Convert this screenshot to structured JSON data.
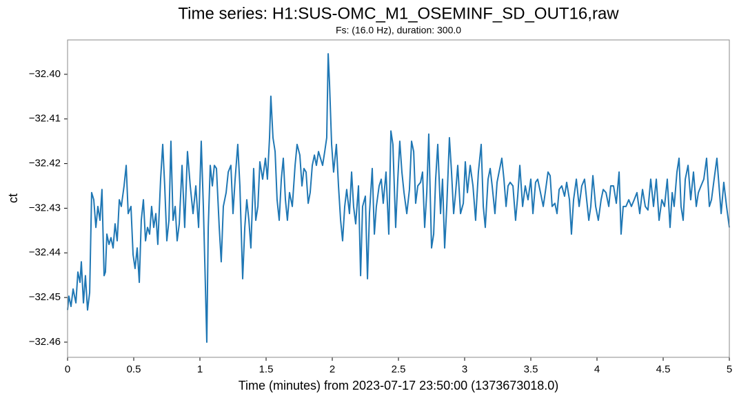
{
  "chart_data": {
    "type": "line",
    "title": "Time series: H1:SUS-OMC_M1_OSEMINF_SD_OUT16,raw",
    "subtitle": "Fs: (16.0 Hz), duration: 300.0",
    "x_label": "Time (minutes) from 2023-07-17 23:50:00 (1373673018.0)",
    "y_label": "ct",
    "color": "#1f77b4",
    "xlim": [
      0,
      5
    ],
    "ylim": [
      -32.4634,
      -32.3923
    ],
    "xticks": [
      0,
      0.5,
      1,
      1.5,
      2,
      2.5,
      3,
      3.5,
      4,
      4.5,
      5
    ],
    "yticks": [
      {
        "value": -32.46,
        "label": "−32.46"
      },
      {
        "value": -32.45,
        "label": "−32.45"
      },
      {
        "value": -32.44,
        "label": "−32.44"
      },
      {
        "value": -32.43,
        "label": "−32.43"
      },
      {
        "value": -32.42,
        "label": "−32.42"
      },
      {
        "value": -32.41,
        "label": "−32.41"
      },
      {
        "value": -32.4,
        "label": "−32.40"
      }
    ],
    "x": [
      0,
      0.01,
      0.026,
      0.042,
      0.063,
      0.078,
      0.094,
      0.104,
      0.12,
      0.135,
      0.151,
      0.167,
      0.182,
      0.198,
      0.214,
      0.229,
      0.245,
      0.26,
      0.276,
      0.286,
      0.297,
      0.313,
      0.328,
      0.344,
      0.359,
      0.375,
      0.391,
      0.406,
      0.427,
      0.443,
      0.458,
      0.479,
      0.495,
      0.51,
      0.526,
      0.542,
      0.557,
      0.573,
      0.589,
      0.604,
      0.62,
      0.635,
      0.651,
      0.667,
      0.682,
      0.703,
      0.719,
      0.734,
      0.75,
      0.766,
      0.781,
      0.797,
      0.813,
      0.828,
      0.844,
      0.865,
      0.885,
      0.906,
      0.927,
      0.948,
      0.969,
      0.99,
      1.01,
      1.026,
      1.042,
      1.052,
      1.063,
      1.078,
      1.094,
      1.109,
      1.125,
      1.146,
      1.161,
      1.177,
      1.198,
      1.214,
      1.234,
      1.25,
      1.266,
      1.286,
      1.302,
      1.323,
      1.339,
      1.354,
      1.37,
      1.385,
      1.406,
      1.422,
      1.438,
      1.453,
      1.474,
      1.495,
      1.51,
      1.526,
      1.536,
      1.552,
      1.568,
      1.583,
      1.599,
      1.615,
      1.63,
      1.646,
      1.661,
      1.677,
      1.698,
      1.719,
      1.734,
      1.755,
      1.771,
      1.786,
      1.802,
      1.818,
      1.833,
      1.849,
      1.865,
      1.88,
      1.896,
      1.911,
      1.927,
      1.943,
      1.958,
      1.969,
      1.979,
      1.995,
      2.01,
      2.031,
      2.047,
      2.063,
      2.078,
      2.094,
      2.109,
      2.13,
      2.146,
      2.161,
      2.177,
      2.198,
      2.214,
      2.229,
      2.25,
      2.266,
      2.281,
      2.302,
      2.318,
      2.333,
      2.354,
      2.37,
      2.385,
      2.406,
      2.427,
      2.443,
      2.458,
      2.479,
      2.495,
      2.51,
      2.526,
      2.542,
      2.563,
      2.583,
      2.599,
      2.615,
      2.63,
      2.646,
      2.667,
      2.682,
      2.698,
      2.714,
      2.729,
      2.75,
      2.766,
      2.781,
      2.797,
      2.818,
      2.833,
      2.849,
      2.865,
      2.885,
      2.901,
      2.917,
      2.932,
      2.948,
      2.969,
      2.99,
      3.005,
      3.021,
      3.042,
      3.063,
      3.083,
      3.104,
      3.125,
      3.141,
      3.156,
      3.177,
      3.193,
      3.208,
      3.229,
      3.245,
      3.26,
      3.281,
      3.297,
      3.313,
      3.328,
      3.344,
      3.365,
      3.385,
      3.401,
      3.417,
      3.438,
      3.458,
      3.479,
      3.5,
      3.516,
      3.536,
      3.552,
      3.573,
      3.594,
      3.609,
      3.63,
      3.646,
      3.661,
      3.682,
      3.698,
      3.714,
      3.734,
      3.755,
      3.771,
      3.792,
      3.807,
      3.823,
      3.844,
      3.865,
      3.885,
      3.906,
      3.922,
      3.938,
      3.953,
      3.969,
      3.99,
      4.01,
      4.031,
      4.047,
      4.068,
      4.089,
      4.104,
      4.125,
      4.146,
      4.167,
      4.182,
      4.198,
      4.219,
      4.24,
      4.26,
      4.281,
      4.302,
      4.323,
      4.344,
      4.365,
      4.385,
      4.406,
      4.427,
      4.448,
      4.469,
      4.49,
      4.51,
      4.531,
      4.552,
      4.568,
      4.583,
      4.604,
      4.62,
      4.635,
      4.651,
      4.667,
      4.688,
      4.708,
      4.729,
      4.75,
      4.766,
      4.786,
      4.807,
      4.828,
      4.849,
      4.865,
      4.885,
      4.906,
      4.922,
      4.938,
      4.958,
      4.979,
      5
    ],
    "values": [
      -32.4528,
      -32.4497,
      -32.452,
      -32.4481,
      -32.4512,
      -32.4443,
      -32.4466,
      -32.442,
      -32.4512,
      -32.4451,
      -32.4528,
      -32.4489,
      -32.4265,
      -32.4281,
      -32.4343,
      -32.4296,
      -32.4327,
      -32.4258,
      -32.4451,
      -32.4443,
      -32.4358,
      -32.4381,
      -32.4366,
      -32.4389,
      -32.4335,
      -32.4373,
      -32.4281,
      -32.4296,
      -32.425,
      -32.4204,
      -32.4312,
      -32.4296,
      -32.4404,
      -32.4435,
      -32.4389,
      -32.4466,
      -32.4327,
      -32.4281,
      -32.4373,
      -32.4343,
      -32.4358,
      -32.4296,
      -32.4343,
      -32.4312,
      -32.4381,
      -32.4235,
      -32.4157,
      -32.425,
      -32.4373,
      -32.4327,
      -32.415,
      -32.4327,
      -32.4296,
      -32.4373,
      -32.4335,
      -32.4204,
      -32.4343,
      -32.4173,
      -32.425,
      -32.4312,
      -32.425,
      -32.4343,
      -32.415,
      -32.4296,
      -32.4481,
      -32.46,
      -32.4343,
      -32.4204,
      -32.425,
      -32.4204,
      -32.4211,
      -32.4343,
      -32.442,
      -32.4296,
      -32.4265,
      -32.4219,
      -32.4204,
      -32.4312,
      -32.4235,
      -32.4157,
      -32.425,
      -32.4458,
      -32.4343,
      -32.4281,
      -32.4327,
      -32.4389,
      -32.4211,
      -32.4327,
      -32.4296,
      -32.4196,
      -32.4235,
      -32.4188,
      -32.4235,
      -32.4142,
      -32.4049,
      -32.4142,
      -32.4173,
      -32.4281,
      -32.4327,
      -32.4235,
      -32.4188,
      -32.4281,
      -32.4327,
      -32.4265,
      -32.4296,
      -32.4204,
      -32.4157,
      -32.4181,
      -32.425,
      -32.4211,
      -32.4219,
      -32.4289,
      -32.4265,
      -32.4204,
      -32.4181,
      -32.4204,
      -32.4173,
      -32.4188,
      -32.4204,
      -32.4173,
      -32.4142,
      -32.3954,
      -32.4019,
      -32.4157,
      -32.4219,
      -32.4157,
      -32.425,
      -32.4327,
      -32.4373,
      -32.4296,
      -32.4258,
      -32.4312,
      -32.4219,
      -32.4296,
      -32.4335,
      -32.425,
      -32.4451,
      -32.4296,
      -32.4273,
      -32.4458,
      -32.4312,
      -32.4211,
      -32.4358,
      -32.4296,
      -32.425,
      -32.4235,
      -32.4289,
      -32.4219,
      -32.4358,
      -32.4127,
      -32.4157,
      -32.4343,
      -32.4235,
      -32.415,
      -32.4219,
      -32.4265,
      -32.4312,
      -32.4258,
      -32.415,
      -32.4173,
      -32.4289,
      -32.425,
      -32.4242,
      -32.4219,
      -32.4343,
      -32.4265,
      -32.4134,
      -32.4389,
      -32.4358,
      -32.4235,
      -32.4157,
      -32.4312,
      -32.4235,
      -32.4389,
      -32.4296,
      -32.4142,
      -32.4219,
      -32.4312,
      -32.4265,
      -32.4204,
      -32.4312,
      -32.4289,
      -32.4196,
      -32.4265,
      -32.4204,
      -32.425,
      -32.4327,
      -32.4219,
      -32.4157,
      -32.4296,
      -32.4343,
      -32.4235,
      -32.4211,
      -32.425,
      -32.4312,
      -32.4242,
      -32.4219,
      -32.4188,
      -32.4235,
      -32.4296,
      -32.425,
      -32.4242,
      -32.425,
      -32.4327,
      -32.4273,
      -32.4204,
      -32.4296,
      -32.425,
      -32.4281,
      -32.4235,
      -32.4312,
      -32.4242,
      -32.4235,
      -32.4265,
      -32.4296,
      -32.4265,
      -32.4219,
      -32.4227,
      -32.4296,
      -32.4289,
      -32.4312,
      -32.4258,
      -32.425,
      -32.4273,
      -32.4242,
      -32.4281,
      -32.4358,
      -32.4281,
      -32.4235,
      -32.4296,
      -32.425,
      -32.4235,
      -32.4281,
      -32.4327,
      -32.4296,
      -32.4227,
      -32.4296,
      -32.4327,
      -32.4281,
      -32.4258,
      -32.4265,
      -32.4296,
      -32.425,
      -32.425,
      -32.4289,
      -32.4219,
      -32.4358,
      -32.4296,
      -32.4296,
      -32.4281,
      -32.4296,
      -32.4281,
      -32.4265,
      -32.4312,
      -32.4258,
      -32.4296,
      -32.4304,
      -32.4235,
      -32.4296,
      -32.4235,
      -32.4327,
      -32.4281,
      -32.4296,
      -32.4235,
      -32.4343,
      -32.4265,
      -32.4296,
      -32.4219,
      -32.4188,
      -32.4296,
      -32.4327,
      -32.4235,
      -32.4204,
      -32.4281,
      -32.4219,
      -32.4296,
      -32.4265,
      -32.425,
      -32.4235,
      -32.4188,
      -32.4296,
      -32.4281,
      -32.4235,
      -32.4188,
      -32.425,
      -32.4312,
      -32.4242,
      -32.4296,
      -32.4343
    ]
  }
}
